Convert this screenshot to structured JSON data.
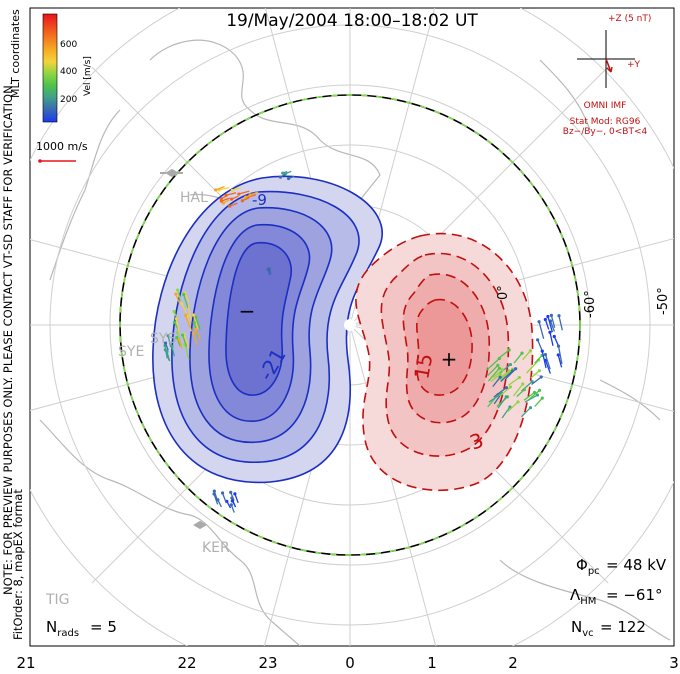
{
  "title": "19/May/2004 18:00–18:02 UT",
  "colorbar": {
    "label": "Vel [m/s]",
    "ticks": [
      "600",
      "400",
      "200"
    ],
    "colors": [
      "#e8141c",
      "#f2671d",
      "#f6a623",
      "#f5d33b",
      "#8ed640",
      "#4fc34b",
      "#3fa28a",
      "#3a6bb0",
      "#1a3bf0"
    ]
  },
  "coords_label": "MLT coordinates",
  "scale": {
    "label": "1000 m/s"
  },
  "note": "NOTE: FOR PREVIEW PURPOSES ONLY. PLEASE CONTACT VT-SD STAFF FOR VERIFICATION.",
  "fit_order": "FitOrder: 8, mapEX format",
  "imf": {
    "z_label": "+Z (5 nT)",
    "y_label": "+Y",
    "source": "OMNI IMF",
    "model": "Stat Mod: RG96",
    "condition": "Bz−/By−, 0<BT<4"
  },
  "latitudes": [
    "0°",
    "-60°",
    "-50°"
  ],
  "stations": [
    "HAL",
    "SYE",
    "SYS",
    "KER",
    "TIG"
  ],
  "contours": {
    "negative_labels": [
      "-9",
      "-21"
    ],
    "positive_labels": [
      "15",
      "3"
    ],
    "min_marker": "−",
    "max_marker": "+"
  },
  "stats": {
    "phi_pc": "= 48 kV",
    "lambda_hm": "= −61°",
    "n_vc": "= 122",
    "n_rads": "= 5"
  },
  "mlt_ticks": [
    "21",
    "22",
    "23",
    "0",
    "1",
    "2",
    "3"
  ]
}
